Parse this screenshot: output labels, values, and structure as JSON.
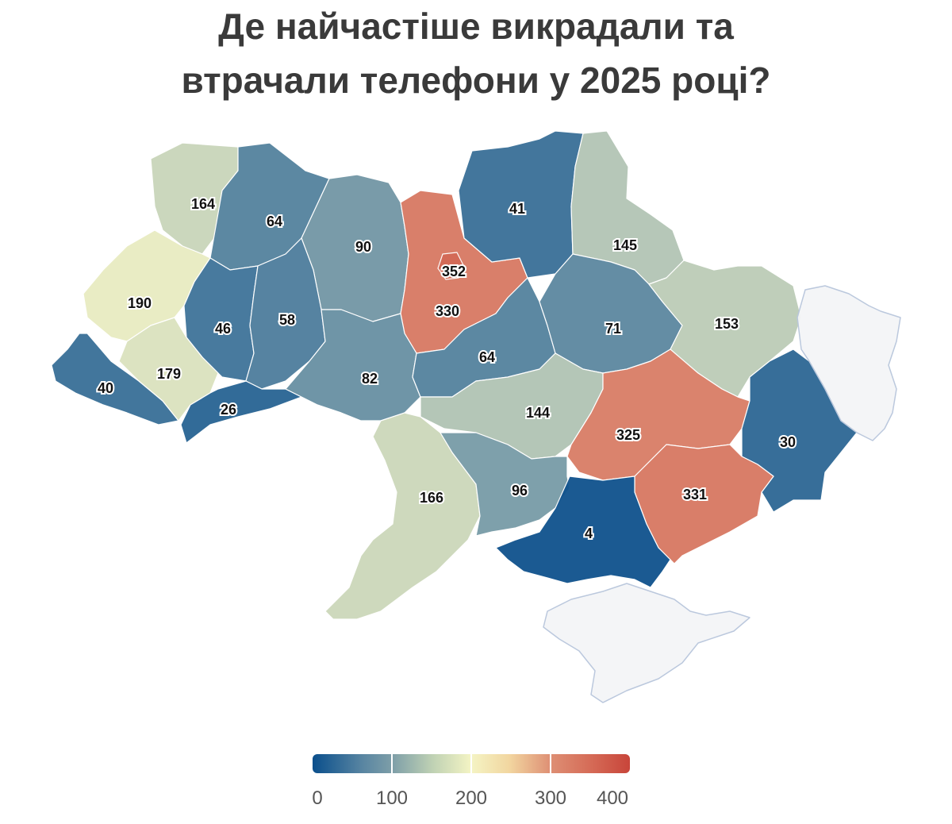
{
  "title": {
    "line1": "Де найчастіше викрадали та",
    "line2": "втрачали телефони у 2025 році?"
  },
  "legend": {
    "min": 0,
    "max": 400,
    "ticks": [
      "0",
      "100",
      "200",
      "300",
      "400"
    ],
    "colors": [
      "#0a4f8c",
      "#7d9ea8",
      "#f4f4c4",
      "#de8f74",
      "#c8453a"
    ]
  },
  "regions": [
    {
      "id": "volyn",
      "value": 164
    },
    {
      "id": "rivne",
      "value": 64
    },
    {
      "id": "zhytomyr",
      "value": 90
    },
    {
      "id": "kyiv-oblast",
      "value": 330
    },
    {
      "id": "kyiv-city",
      "value": 352
    },
    {
      "id": "chernihiv",
      "value": 41
    },
    {
      "id": "sumy",
      "value": 145
    },
    {
      "id": "lviv",
      "value": 190
    },
    {
      "id": "ternopil",
      "value": 46
    },
    {
      "id": "khmelnytskyi",
      "value": 58
    },
    {
      "id": "zakarpattia",
      "value": 40
    },
    {
      "id": "ivano-frankivsk",
      "value": 179
    },
    {
      "id": "chernivtsi",
      "value": 26
    },
    {
      "id": "vinnytsia",
      "value": 82
    },
    {
      "id": "cherkasy",
      "value": 64
    },
    {
      "id": "poltava",
      "value": 71
    },
    {
      "id": "kharkiv",
      "value": 153
    },
    {
      "id": "kirovohrad",
      "value": 144
    },
    {
      "id": "dnipropetrovsk",
      "value": 325
    },
    {
      "id": "donetsk",
      "value": 30
    },
    {
      "id": "zaporizhzhia",
      "value": 331
    },
    {
      "id": "odesa",
      "value": 166
    },
    {
      "id": "mykolaiv",
      "value": 96
    },
    {
      "id": "kherson",
      "value": 4
    },
    {
      "id": "luhansk",
      "value": null
    },
    {
      "id": "crimea",
      "value": null
    }
  ],
  "nodata_color": "#f4f5f7"
}
